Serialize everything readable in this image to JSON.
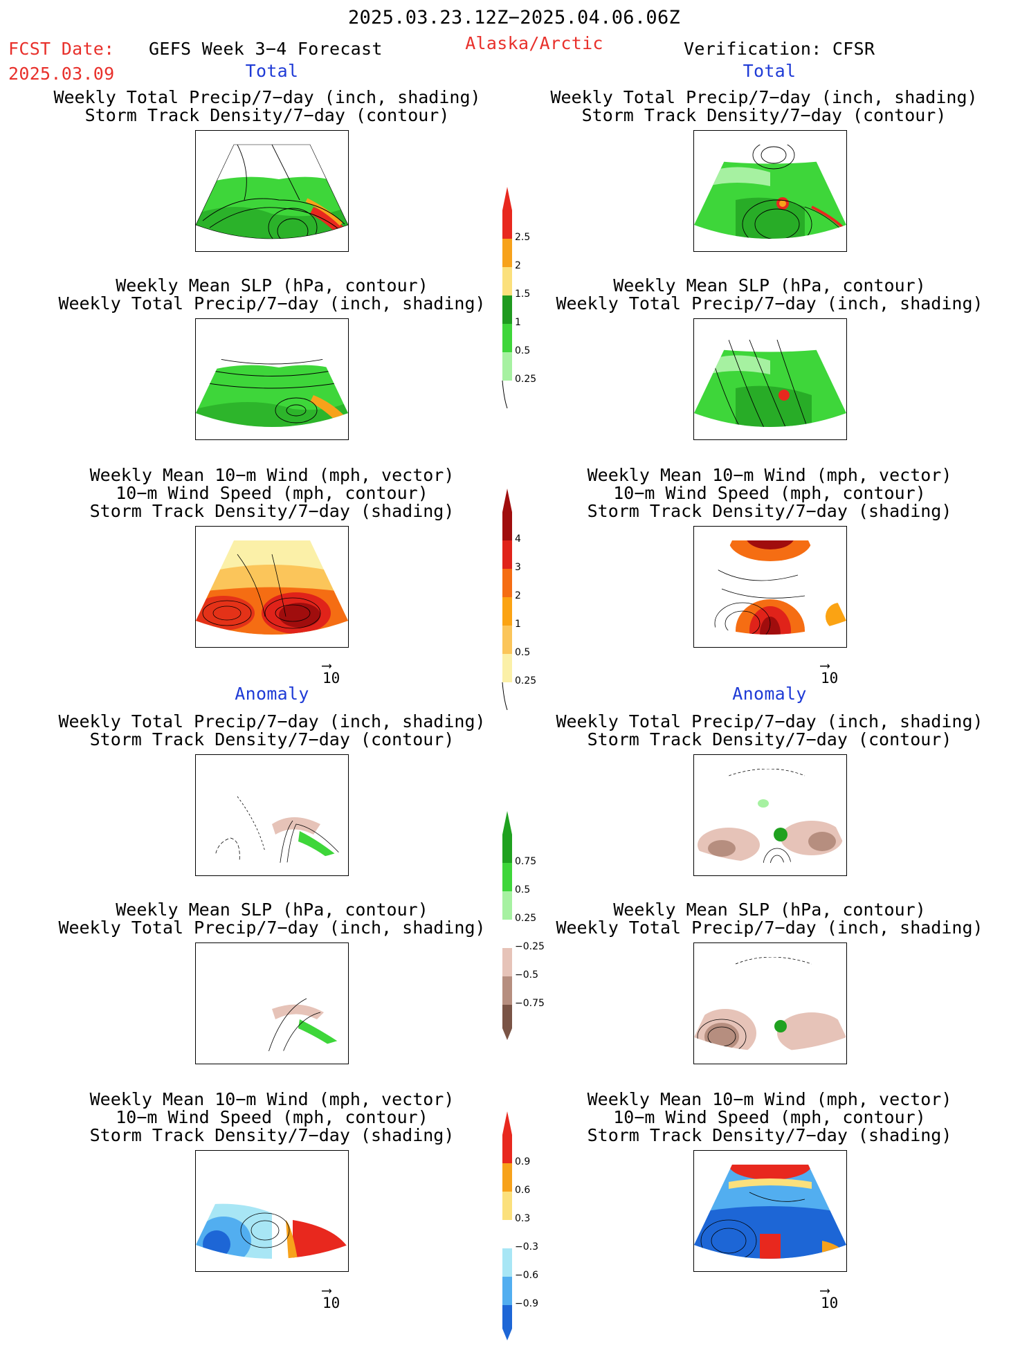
{
  "header": {
    "date_range": "2025.03.23.12Z−2025.04.06.06Z",
    "fcst_label": "FCST Date:",
    "fcst_date": "2025.03.09",
    "forecast_title": "GEFS Week 3−4 Forecast",
    "region": "Alaska/Arctic",
    "verification": "Verification: CFSR"
  },
  "sections": {
    "total": "Total",
    "anomaly": "Anomaly"
  },
  "titles": {
    "precip_storm": [
      "Weekly Total Precip/7−day (inch, shading)",
      "Storm Track Density/7−day (contour)"
    ],
    "slp_precip": [
      "Weekly Mean SLP (hPa, contour)",
      "Weekly Total Precip/7−day (inch, shading)"
    ],
    "wind_storm": [
      "Weekly Mean 10−m Wind (mph, vector)",
      "10−m Wind Speed (mph, contour)",
      "Storm Track Density/7−day (shading)"
    ]
  },
  "vector_ref": "10",
  "colorbars": {
    "precip_total": {
      "labels": [
        "2.5",
        "2",
        "1.5",
        "1",
        "0.5",
        "0.25"
      ],
      "colors": [
        "#e8281e",
        "#f7a21b",
        "#fbe07c",
        "#1f9a1f",
        "#3ed63a",
        "#a6f1a1"
      ]
    },
    "storm_total": {
      "labels": [
        "4",
        "3",
        "2",
        "1",
        "0.5",
        "0.25"
      ],
      "colors": [
        "#a00d0d",
        "#e0231a",
        "#f56d13",
        "#fba313",
        "#fbc55a",
        "#fbf0a8"
      ]
    },
    "precip_anom": {
      "labels": [
        "0.75",
        "0.5",
        "0.25",
        "−0.25",
        "−0.5",
        "−0.75"
      ],
      "colors": [
        "#1fa11f",
        "#3ed63a",
        "#a6f1a1",
        "#ffffff",
        "#e6c3b8",
        "#b68e7f",
        "#7a5446"
      ]
    },
    "storm_anom": {
      "labels": [
        "0.9",
        "0.6",
        "0.3",
        "−0.3",
        "−0.6",
        "−0.9"
      ],
      "colors": [
        "#e8281e",
        "#f7a21b",
        "#fbe07c",
        "#ffffff",
        "#a8e6f5",
        "#52aef0",
        "#1d66d6"
      ]
    }
  }
}
